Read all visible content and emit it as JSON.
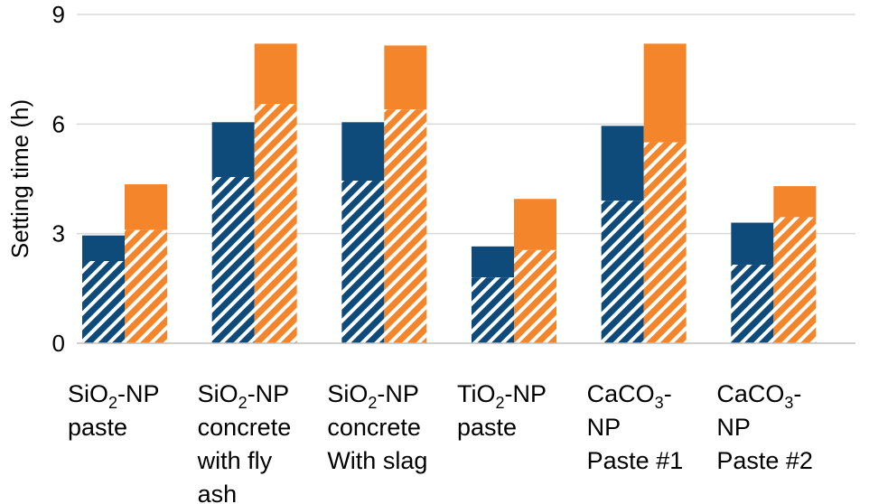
{
  "chart_data": {
    "type": "bar",
    "title": "",
    "xlabel": "",
    "ylabel": "Setting time (h)",
    "ylim": [
      0,
      9
    ],
    "yticks": [
      "0",
      "3",
      "6",
      "9"
    ],
    "grid": true,
    "categories": [
      {
        "lines": [
          [
            {
              "t": "SiO"
            },
            {
              "t": "2",
              "sub": true
            },
            {
              "t": "-NP"
            }
          ],
          [
            {
              "t": "paste"
            }
          ]
        ]
      },
      {
        "lines": [
          [
            {
              "t": "SiO"
            },
            {
              "t": "2",
              "sub": true
            },
            {
              "t": "-NP"
            }
          ],
          [
            {
              "t": "concrete"
            }
          ],
          [
            {
              "t": "with fly"
            }
          ],
          [
            {
              "t": "ash"
            }
          ]
        ]
      },
      {
        "lines": [
          [
            {
              "t": "SiO"
            },
            {
              "t": "2",
              "sub": true
            },
            {
              "t": "-NP"
            }
          ],
          [
            {
              "t": "concrete"
            }
          ],
          [
            {
              "t": "With slag"
            }
          ]
        ]
      },
      {
        "lines": [
          [
            {
              "t": "TiO"
            },
            {
              "t": "2",
              "sub": true
            },
            {
              "t": "-NP"
            }
          ],
          [
            {
              "t": "paste"
            }
          ]
        ]
      },
      {
        "lines": [
          [
            {
              "t": "CaCO"
            },
            {
              "t": "3",
              "sub": true
            },
            {
              "t": "-"
            }
          ],
          [
            {
              "t": "NP"
            }
          ],
          [
            {
              "t": "Paste #1"
            }
          ]
        ]
      },
      {
        "lines": [
          [
            {
              "t": "CaCO"
            },
            {
              "t": "3",
              "sub": true
            },
            {
              "t": "-"
            }
          ],
          [
            {
              "t": "NP"
            }
          ],
          [
            {
              "t": "Paste #2"
            }
          ]
        ]
      }
    ],
    "series": [
      {
        "name": "blue-hatched",
        "color": "#0e4a7a",
        "hatched": true,
        "values": [
          2.25,
          4.55,
          4.45,
          1.8,
          3.9,
          2.15
        ]
      },
      {
        "name": "blue-solid",
        "color": "#0e4a7a",
        "hatched": false,
        "values": [
          2.95,
          6.05,
          6.05,
          2.65,
          5.95,
          3.3
        ]
      },
      {
        "name": "orange-hatched",
        "color": "#f5852a",
        "hatched": true,
        "values": [
          3.1,
          6.55,
          6.4,
          2.55,
          5.5,
          3.45
        ]
      },
      {
        "name": "orange-solid",
        "color": "#f5852a",
        "hatched": false,
        "values": [
          4.35,
          8.2,
          8.15,
          3.95,
          8.2,
          4.3
        ]
      }
    ]
  }
}
